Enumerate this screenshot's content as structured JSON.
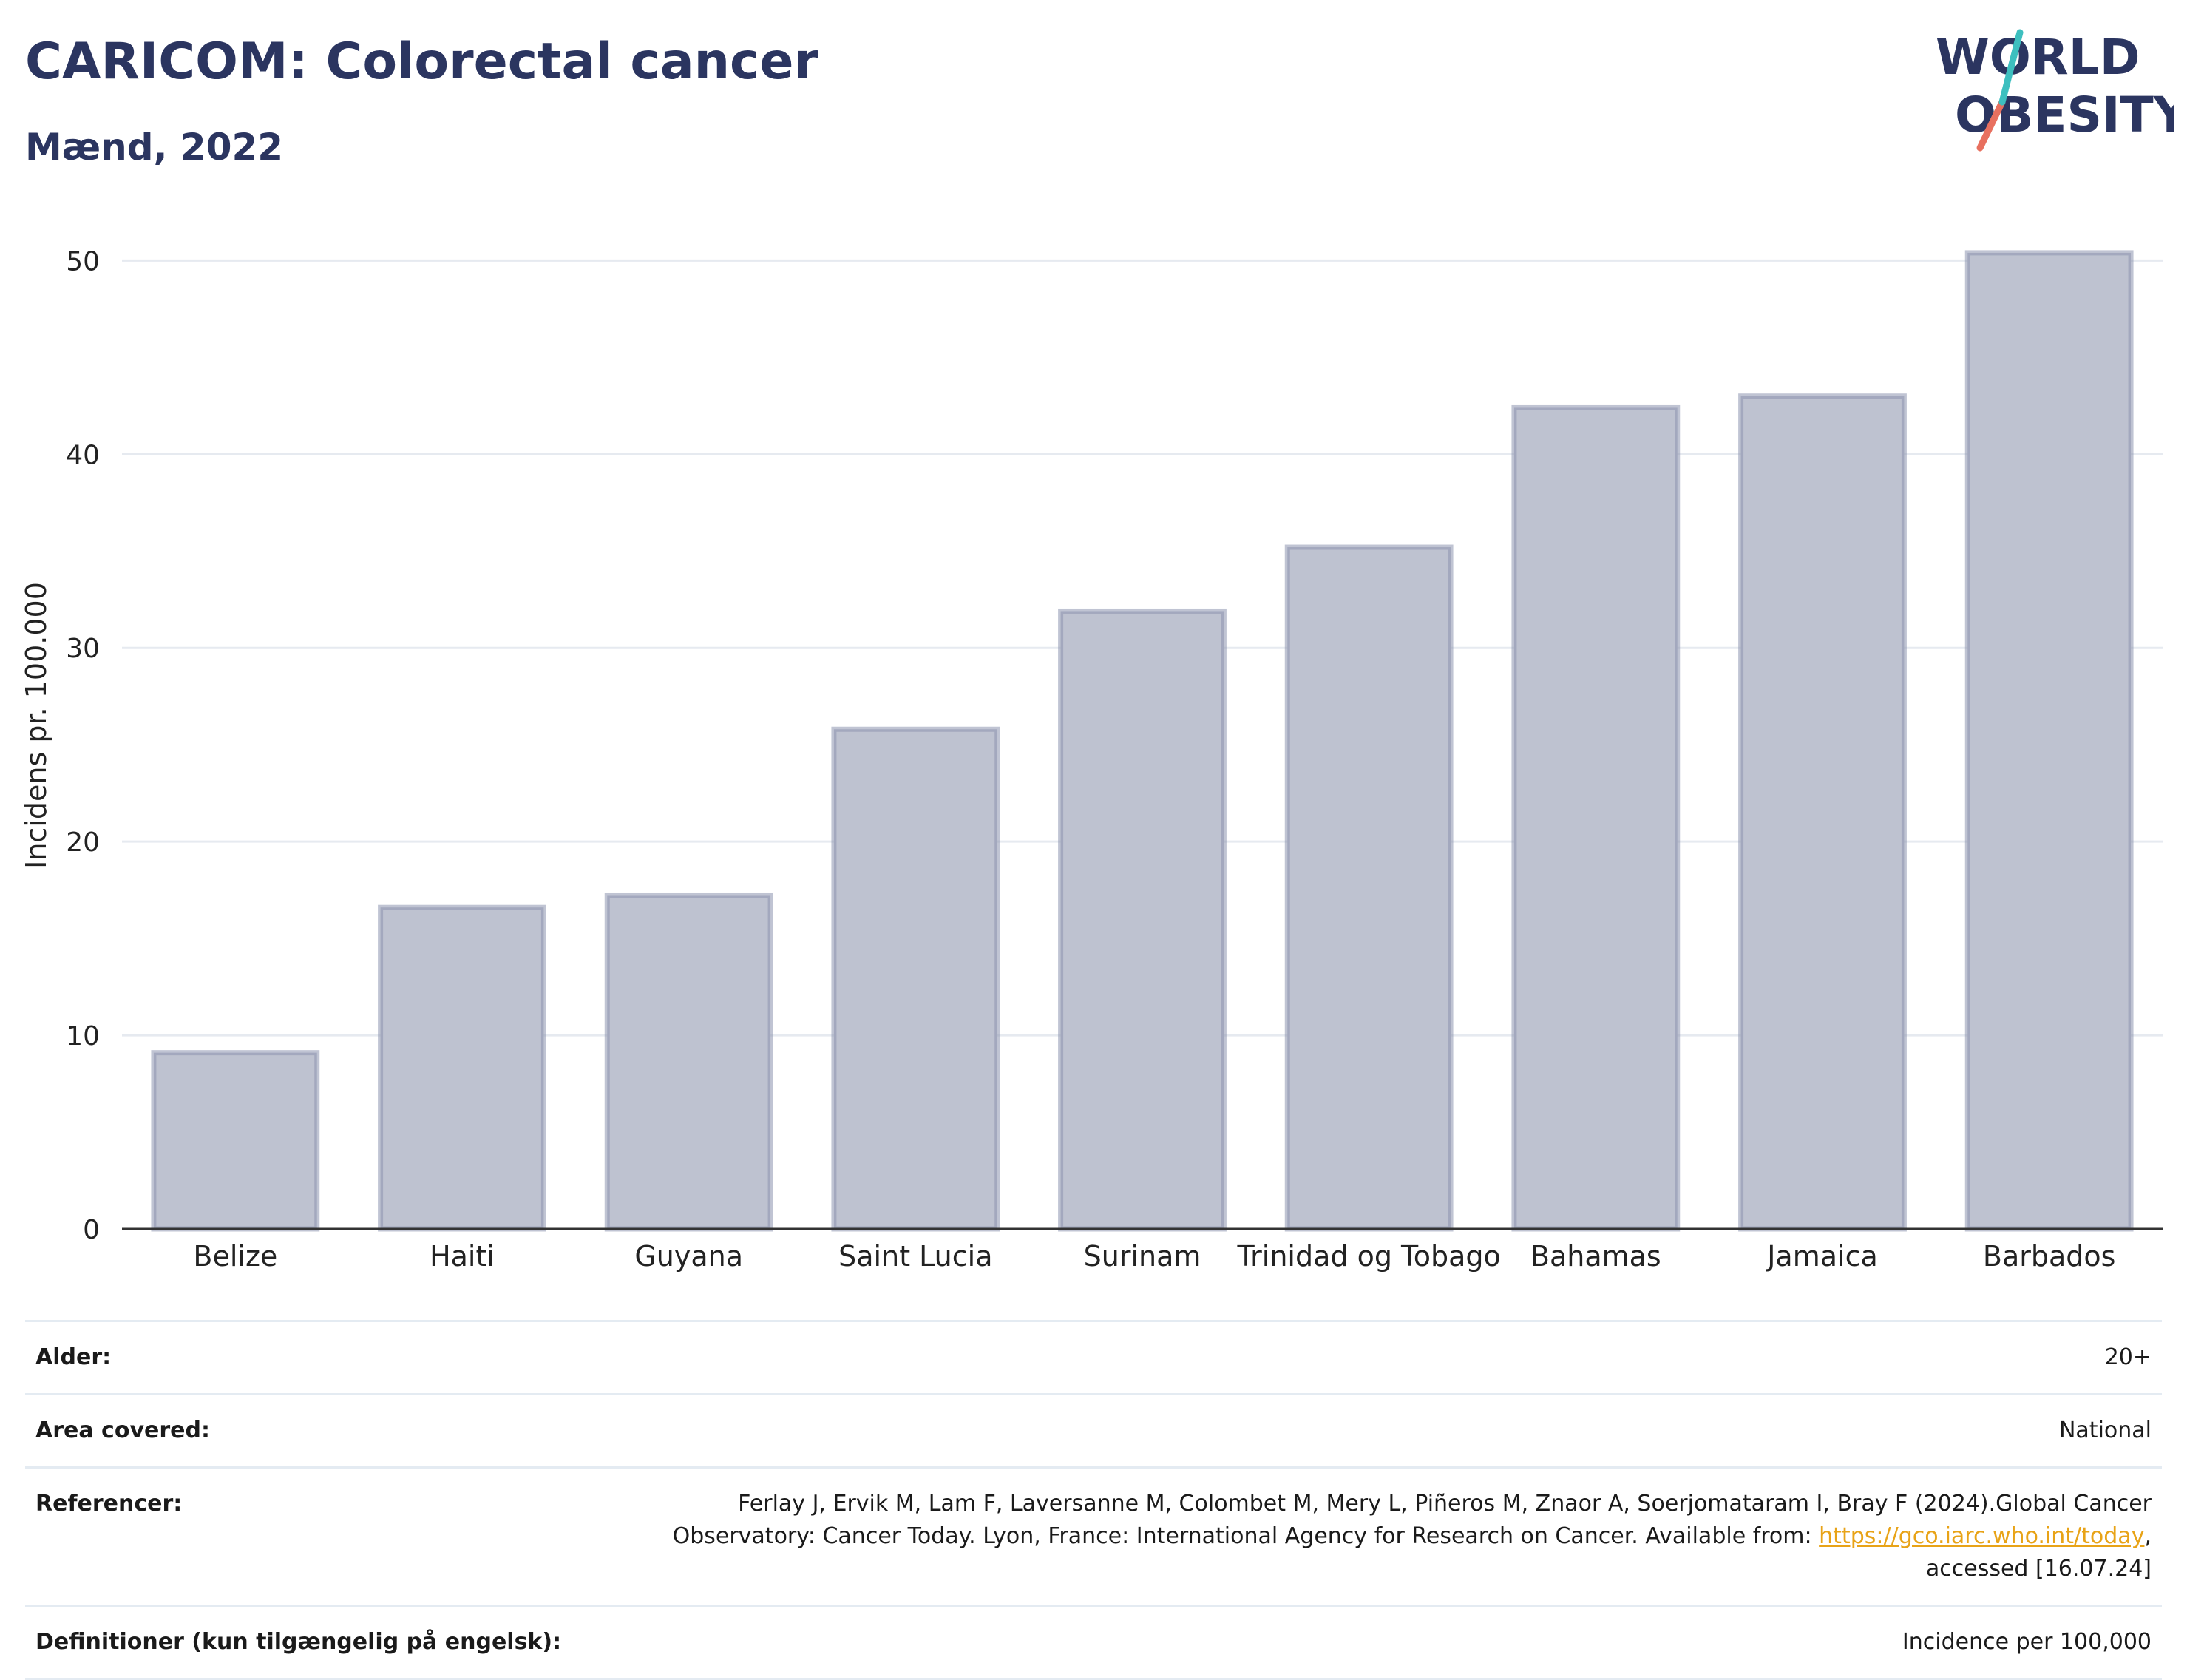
{
  "header": {
    "title": "CARICOM: Colorectal cancer",
    "subtitle": "Mænd, 2022"
  },
  "logo": {
    "line1": "WORLD",
    "line2": "OBESITY"
  },
  "chart_data": {
    "type": "bar",
    "categories": [
      "Belize",
      "Haiti",
      "Guyana",
      "Saint Lucia",
      "Surinam",
      "Trinidad og Tobago",
      "Bahamas",
      "Jamaica",
      "Barbados"
    ],
    "values": [
      9.1,
      16.6,
      17.2,
      25.8,
      31.9,
      35.2,
      42.4,
      43.0,
      50.4
    ],
    "ylabel": "Incidens pr. 100.000",
    "ylim": [
      0,
      52
    ],
    "yticks": [
      0,
      10,
      20,
      30,
      40,
      50
    ],
    "grid": true,
    "bar_color": "#bec2d0",
    "bar_edge_color": "#8c93ae"
  },
  "info": {
    "rows": [
      {
        "key": "Alder:",
        "value": "20+"
      },
      {
        "key": "Area covered:",
        "value": "National"
      },
      {
        "key": "Referencer:",
        "value_pre": "Ferlay J, Ervik M, Lam F, Laversanne M, Colombet M, Mery L, Piñeros M, Znaor A, Soerjomataram I, Bray F (2024).Global Cancer Observatory: Cancer Today. Lyon, France: International Agency for Research on Cancer. Available from: ",
        "link": "https://gco.iarc.who.int/today",
        "value_post": ", accessed [16.07.24]"
      },
      {
        "key": "Definitioner (kun tilgængelig på engelsk):",
        "value": "Incidence per 100,000"
      }
    ]
  }
}
